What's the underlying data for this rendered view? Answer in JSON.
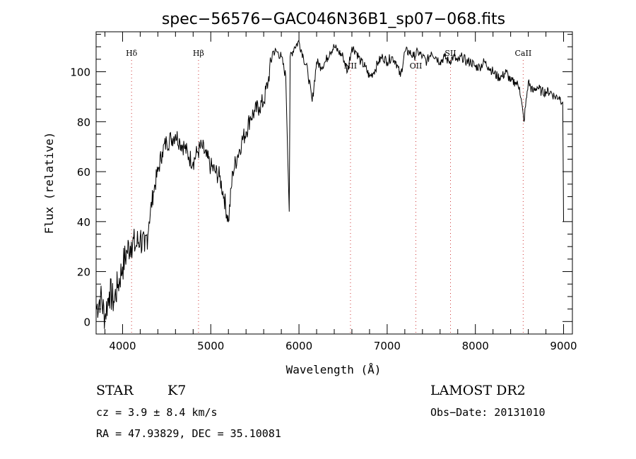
{
  "chart_data": {
    "type": "line",
    "title": "spec−56576−GAC046N36B1_sp07−068.fits",
    "xlabel": "Wavelength (Å)",
    "ylabel": "Flux (relative)",
    "xlim": [
      3700,
      9100
    ],
    "ylim": [
      -5,
      116
    ],
    "xticks": [
      4000,
      5000,
      6000,
      7000,
      8000,
      9000
    ],
    "xtick_labels": [
      "4000",
      "5000",
      "6000",
      "7000",
      "8000",
      "9000"
    ],
    "yticks": [
      0,
      20,
      40,
      60,
      80,
      100
    ],
    "ytick_labels": [
      "0",
      "20",
      "40",
      "60",
      "80",
      "100"
    ],
    "grid": false,
    "line_color": "#000000",
    "marker_color": "#cc3333",
    "series": [
      {
        "x": [
          3700,
          3750,
          3800,
          3850,
          3900,
          3950,
          4000,
          4050,
          4100,
          4150,
          4200,
          4250,
          4300,
          4350,
          4400,
          4450,
          4500,
          4550,
          4600,
          4650,
          4700,
          4750,
          4800,
          4850,
          4900,
          4950,
          5000,
          5050,
          5100,
          5150,
          5200,
          5250,
          5300,
          5350,
          5400,
          5450,
          5500,
          5550,
          5600,
          5650,
          5700,
          5750,
          5800,
          5850,
          5890,
          5900,
          5950,
          6000,
          6050,
          6100,
          6150,
          6200,
          6250,
          6300,
          6350,
          6400,
          6450,
          6500,
          6550,
          6600,
          6650,
          6700,
          6750,
          6800,
          6850,
          6900,
          6950,
          7000,
          7050,
          7100,
          7150,
          7200,
          7250,
          7300,
          7350,
          7400,
          7450,
          7500,
          7550,
          7600,
          7650,
          7700,
          7750,
          7800,
          7850,
          7900,
          7950,
          8000,
          8050,
          8100,
          8150,
          8200,
          8250,
          8300,
          8350,
          8400,
          8450,
          8500,
          8550,
          8600,
          8650,
          8700,
          8750,
          8800,
          8850,
          8900,
          8950,
          8990,
          9000
        ],
        "y": [
          5,
          10,
          2,
          12,
          8,
          15,
          22,
          28,
          32,
          30,
          34,
          28,
          40,
          52,
          60,
          68,
          72,
          73,
          75,
          72,
          70,
          66,
          64,
          68,
          70,
          66,
          62,
          60,
          58,
          50,
          40,
          60,
          66,
          72,
          76,
          82,
          84,
          86,
          88,
          96,
          108,
          108,
          106,
          98,
          44,
          106,
          110,
          112,
          106,
          100,
          88,
          104,
          102,
          104,
          108,
          110,
          108,
          106,
          100,
          110,
          108,
          104,
          102,
          98,
          100,
          104,
          106,
          104,
          106,
          104,
          98,
          108,
          108,
          106,
          108,
          106,
          104,
          108,
          106,
          104,
          106,
          104,
          106,
          104,
          106,
          104,
          104,
          102,
          102,
          104,
          102,
          100,
          98,
          98,
          100,
          96,
          96,
          94,
          80,
          96,
          92,
          94,
          92,
          92,
          92,
          90,
          90,
          88,
          40
        ]
      }
    ],
    "line_markers": [
      {
        "label": "Hδ",
        "x": 4102
      },
      {
        "label": "Hβ",
        "x": 4861
      },
      {
        "label": "NII",
        "x": 6584
      },
      {
        "label": "OII",
        "x": 7325
      },
      {
        "label": "SII",
        "x": 7718
      },
      {
        "label": "CaII",
        "x": 8542
      }
    ]
  },
  "info": {
    "object_class": "STAR",
    "subclass": "K7",
    "survey": "LAMOST DR2",
    "cz": "cz = 3.9 ± 8.4 km/s",
    "obs_date": "Obs−Date: 20131010",
    "coords": "RA =  47.93829, DEC =  35.10081"
  }
}
